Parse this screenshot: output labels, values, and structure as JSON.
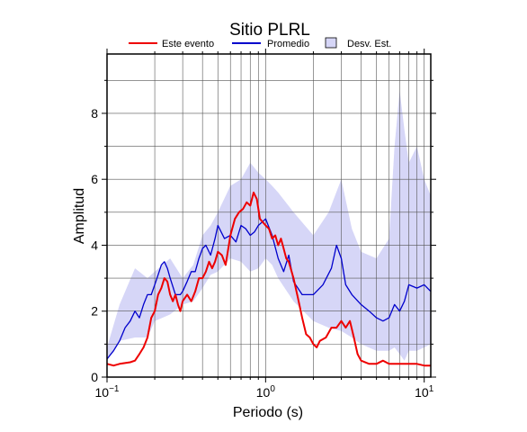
{
  "chart_data": {
    "type": "line",
    "title": "Sitio PLRL",
    "xlabel": "Periodo (s)",
    "ylabel": "Amplitud",
    "xscale": "log",
    "xlim": [
      0.1,
      11.0
    ],
    "ylim": [
      0,
      9.8
    ],
    "grid": true,
    "legend_position": "top",
    "x_ticks": [
      {
        "value": 0.1,
        "base": "10",
        "exp": "−1"
      },
      {
        "value": 1,
        "base": "10",
        "exp": "0"
      },
      {
        "value": 10,
        "base": "10",
        "exp": "1"
      }
    ],
    "y_ticks": [
      {
        "value": 0,
        "label": "0"
      },
      {
        "value": 2,
        "label": "2"
      },
      {
        "value": 4,
        "label": "4"
      },
      {
        "value": 6,
        "label": "6"
      },
      {
        "value": 8,
        "label": "8"
      }
    ],
    "legend": [
      {
        "label": "Este evento",
        "kind": "line",
        "color": "#ee0000"
      },
      {
        "label": "Promedio",
        "kind": "line",
        "color": "#0000cc"
      },
      {
        "label": "Desv. Est.",
        "kind": "patch",
        "color": "#d6d6f7"
      }
    ],
    "band": {
      "name": "Desv. Est.",
      "color": "#d6d6f7",
      "x": [
        0.1,
        0.12,
        0.15,
        0.18,
        0.2,
        0.25,
        0.3,
        0.35,
        0.4,
        0.45,
        0.5,
        0.6,
        0.7,
        0.8,
        0.9,
        1.0,
        1.1,
        1.2,
        1.5,
        2.0,
        2.5,
        3.0,
        3.5,
        4.0,
        5.0,
        6.0,
        6.5,
        7.0,
        7.5,
        8.0,
        9.0,
        10.0,
        11.0
      ],
      "upper": [
        0.9,
        2.2,
        3.3,
        3.0,
        3.2,
        3.6,
        3.0,
        3.4,
        4.3,
        4.6,
        5.0,
        5.8,
        6.0,
        6.5,
        6.2,
        6.0,
        5.8,
        5.6,
        5.0,
        4.3,
        5.0,
        6.0,
        4.5,
        3.8,
        3.6,
        4.2,
        7.0,
        8.7,
        7.5,
        6.5,
        7.0,
        6.0,
        5.5
      ],
      "lower": [
        0.5,
        1.1,
        1.2,
        1.2,
        1.7,
        1.9,
        2.2,
        2.3,
        2.7,
        3.1,
        3.2,
        3.6,
        3.5,
        3.2,
        3.3,
        3.6,
        3.4,
        3.0,
        2.3,
        1.7,
        1.5,
        1.4,
        1.2,
        1.0,
        0.8,
        0.8,
        0.9,
        0.7,
        0.5,
        0.8,
        0.8,
        0.9,
        1.0
      ]
    },
    "series": [
      {
        "name": "Este evento",
        "color": "#ee0000",
        "x": [
          0.1,
          0.11,
          0.12,
          0.14,
          0.15,
          0.16,
          0.17,
          0.18,
          0.19,
          0.2,
          0.21,
          0.22,
          0.23,
          0.24,
          0.25,
          0.26,
          0.27,
          0.28,
          0.29,
          0.3,
          0.32,
          0.34,
          0.36,
          0.38,
          0.4,
          0.42,
          0.44,
          0.46,
          0.48,
          0.5,
          0.53,
          0.56,
          0.6,
          0.64,
          0.68,
          0.72,
          0.76,
          0.8,
          0.84,
          0.88,
          0.92,
          0.96,
          1.0,
          1.05,
          1.1,
          1.15,
          1.2,
          1.25,
          1.3,
          1.35,
          1.4,
          1.5,
          1.6,
          1.7,
          1.8,
          1.9,
          2.0,
          2.1,
          2.2,
          2.4,
          2.6,
          2.8,
          3.0,
          3.2,
          3.4,
          3.6,
          3.8,
          4.0,
          4.5,
          5.0,
          5.5,
          6.0,
          7.0,
          8.0,
          9.0,
          10.0,
          11.0
        ],
        "y": [
          0.4,
          0.35,
          0.4,
          0.45,
          0.5,
          0.7,
          0.9,
          1.2,
          1.8,
          2.0,
          2.5,
          2.7,
          3.0,
          2.9,
          2.5,
          2.3,
          2.5,
          2.2,
          2.0,
          2.3,
          2.5,
          2.3,
          2.6,
          3.0,
          3.0,
          3.2,
          3.5,
          3.3,
          3.5,
          3.8,
          3.7,
          3.4,
          4.3,
          4.8,
          5.0,
          5.1,
          5.3,
          5.2,
          5.6,
          5.4,
          4.8,
          4.7,
          4.6,
          4.5,
          4.2,
          4.3,
          4.0,
          4.2,
          3.9,
          3.6,
          3.5,
          3.0,
          2.4,
          1.8,
          1.3,
          1.2,
          1.0,
          0.9,
          1.1,
          1.2,
          1.5,
          1.5,
          1.7,
          1.5,
          1.7,
          1.2,
          0.7,
          0.5,
          0.4,
          0.4,
          0.5,
          0.4,
          0.4,
          0.4,
          0.4,
          0.35,
          0.35
        ]
      },
      {
        "name": "Promedio",
        "color": "#0000cc",
        "x": [
          0.1,
          0.11,
          0.12,
          0.13,
          0.14,
          0.15,
          0.16,
          0.17,
          0.18,
          0.19,
          0.2,
          0.21,
          0.22,
          0.23,
          0.24,
          0.25,
          0.27,
          0.29,
          0.3,
          0.32,
          0.34,
          0.36,
          0.38,
          0.4,
          0.42,
          0.45,
          0.48,
          0.5,
          0.55,
          0.6,
          0.65,
          0.7,
          0.75,
          0.8,
          0.85,
          0.9,
          0.95,
          1.0,
          1.1,
          1.2,
          1.3,
          1.4,
          1.5,
          1.7,
          2.0,
          2.3,
          2.6,
          2.8,
          3.0,
          3.2,
          3.5,
          4.0,
          4.5,
          5.0,
          5.5,
          6.0,
          6.5,
          7.0,
          7.5,
          8.0,
          9.0,
          10.0,
          11.0
        ],
        "y": [
          0.55,
          0.8,
          1.1,
          1.5,
          1.7,
          2.0,
          1.8,
          2.2,
          2.5,
          2.5,
          2.8,
          3.1,
          3.4,
          3.5,
          3.3,
          3.0,
          2.5,
          2.5,
          2.6,
          2.9,
          3.2,
          3.2,
          3.6,
          3.9,
          4.0,
          3.7,
          4.2,
          4.6,
          4.2,
          4.3,
          4.1,
          4.6,
          4.5,
          4.3,
          4.4,
          4.6,
          4.7,
          4.8,
          4.3,
          3.6,
          3.2,
          3.7,
          2.9,
          2.5,
          2.5,
          2.8,
          3.3,
          4.0,
          3.6,
          2.8,
          2.5,
          2.2,
          2.0,
          1.8,
          1.7,
          1.8,
          2.2,
          2.0,
          2.3,
          2.8,
          2.7,
          2.8,
          2.6
        ]
      }
    ]
  }
}
